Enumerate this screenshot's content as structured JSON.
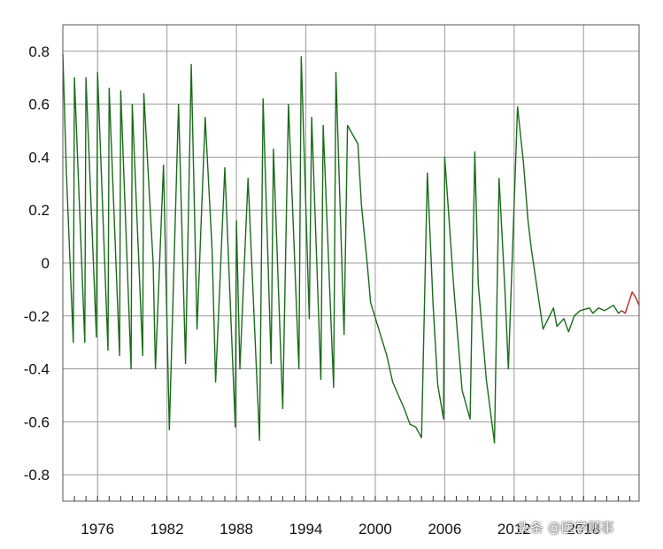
{
  "chart_data": {
    "type": "line",
    "title": "",
    "xlabel": "",
    "ylabel": "",
    "xlim": [
      1973.0,
      2022.8
    ],
    "ylim": [
      -0.9,
      0.9
    ],
    "grid": true,
    "legend": "none",
    "x_ticks": [
      1976,
      1982,
      1988,
      1994,
      2000,
      2006,
      2012,
      2018
    ],
    "x_tick_labels": [
      "1976",
      "1982",
      "1988",
      "1994",
      "2000",
      "2006",
      "2012",
      "2018"
    ],
    "x_minor_tick_step": 1,
    "y_ticks": [
      0.8,
      0.6,
      0.4,
      0.2,
      0,
      -0.2,
      -0.4,
      -0.6,
      -0.8
    ],
    "y_tick_labels": [
      "0.8",
      "0.6",
      "0.4",
      "0.2",
      "0",
      "-0.2",
      "-0.4",
      "-0.6",
      "-0.8"
    ],
    "series": [
      {
        "color": "#1a6b1a",
        "x": [
          1973.0,
          1973.3,
          1973.9,
          1974.0,
          1974.9,
          1975.0,
          1975.9,
          1976.0,
          1976.9,
          1977.0,
          1977.9,
          1978.0,
          1978.9,
          1979.0,
          1979.9,
          1980.0,
          1980.8,
          1981.0,
          1981.7,
          1982.2,
          1983.0,
          1983.6,
          1984.1,
          1984.6,
          1985.3,
          1985.9,
          1986.2,
          1987.0,
          1987.9,
          1988.0,
          1988.3,
          1989.0,
          1990.0,
          1990.3,
          1991.0,
          1991.2,
          1992.0,
          1992.5,
          1993.4,
          1993.6,
          1994.3,
          1994.5,
          1995.3,
          1995.5,
          1996.4,
          1996.6,
          1997.3,
          1997.6,
          1998.5,
          1998.8,
          1999.3,
          1999.6,
          2000.3,
          2001.0,
          2001.5,
          2002.0,
          2002.5,
          2003.0,
          2003.5,
          2004.0,
          2004.5,
          2005.0,
          2005.4,
          2005.9,
          2006.0,
          2006.8,
          2007.5,
          2008.2,
          2008.6,
          2008.9,
          2009.6,
          2010.3,
          2010.7,
          2011.2,
          2011.5,
          2012.3,
          2012.8,
          2013.2,
          2013.5,
          2014.5,
          2015.4,
          2015.7,
          2016.3,
          2016.7,
          2017.2,
          2017.7,
          2018.5,
          2018.8,
          2019.3,
          2019.8,
          2020.2,
          2020.6,
          2021.0,
          2021.3
        ],
        "y": [
          0.79,
          0.35,
          -0.3,
          0.7,
          -0.3,
          0.7,
          -0.28,
          0.72,
          -0.33,
          0.66,
          -0.35,
          0.65,
          -0.4,
          0.6,
          -0.35,
          0.64,
          0.0,
          -0.4,
          0.37,
          -0.63,
          0.6,
          -0.38,
          0.75,
          -0.25,
          0.55,
          0.05,
          -0.45,
          0.36,
          -0.62,
          0.16,
          -0.4,
          0.32,
          -0.67,
          0.62,
          -0.38,
          0.43,
          -0.55,
          0.6,
          -0.4,
          0.78,
          -0.21,
          0.55,
          -0.44,
          0.52,
          -0.47,
          0.72,
          -0.27,
          0.52,
          0.45,
          0.22,
          0.0,
          -0.15,
          -0.25,
          -0.35,
          -0.45,
          -0.5,
          -0.55,
          -0.61,
          -0.62,
          -0.66,
          0.34,
          -0.16,
          -0.46,
          -0.59,
          0.4,
          -0.1,
          -0.48,
          -0.59,
          0.42,
          -0.08,
          -0.44,
          -0.68,
          0.32,
          -0.1,
          -0.4,
          0.59,
          0.38,
          0.16,
          0.05,
          -0.25,
          -0.17,
          -0.24,
          -0.21,
          -0.26,
          -0.2,
          -0.18,
          -0.17,
          -0.19,
          -0.17,
          -0.18,
          -0.17,
          -0.16,
          -0.19,
          -0.18
        ]
      },
      {
        "color": "#c81e1e",
        "x": [
          2021.3,
          2021.6,
          2021.9,
          2022.2,
          2022.5,
          2022.8
        ],
        "y": [
          -0.18,
          -0.19,
          -0.15,
          -0.11,
          -0.13,
          -0.16
        ]
      }
    ]
  },
  "watermark": "头条 @医学顾事"
}
